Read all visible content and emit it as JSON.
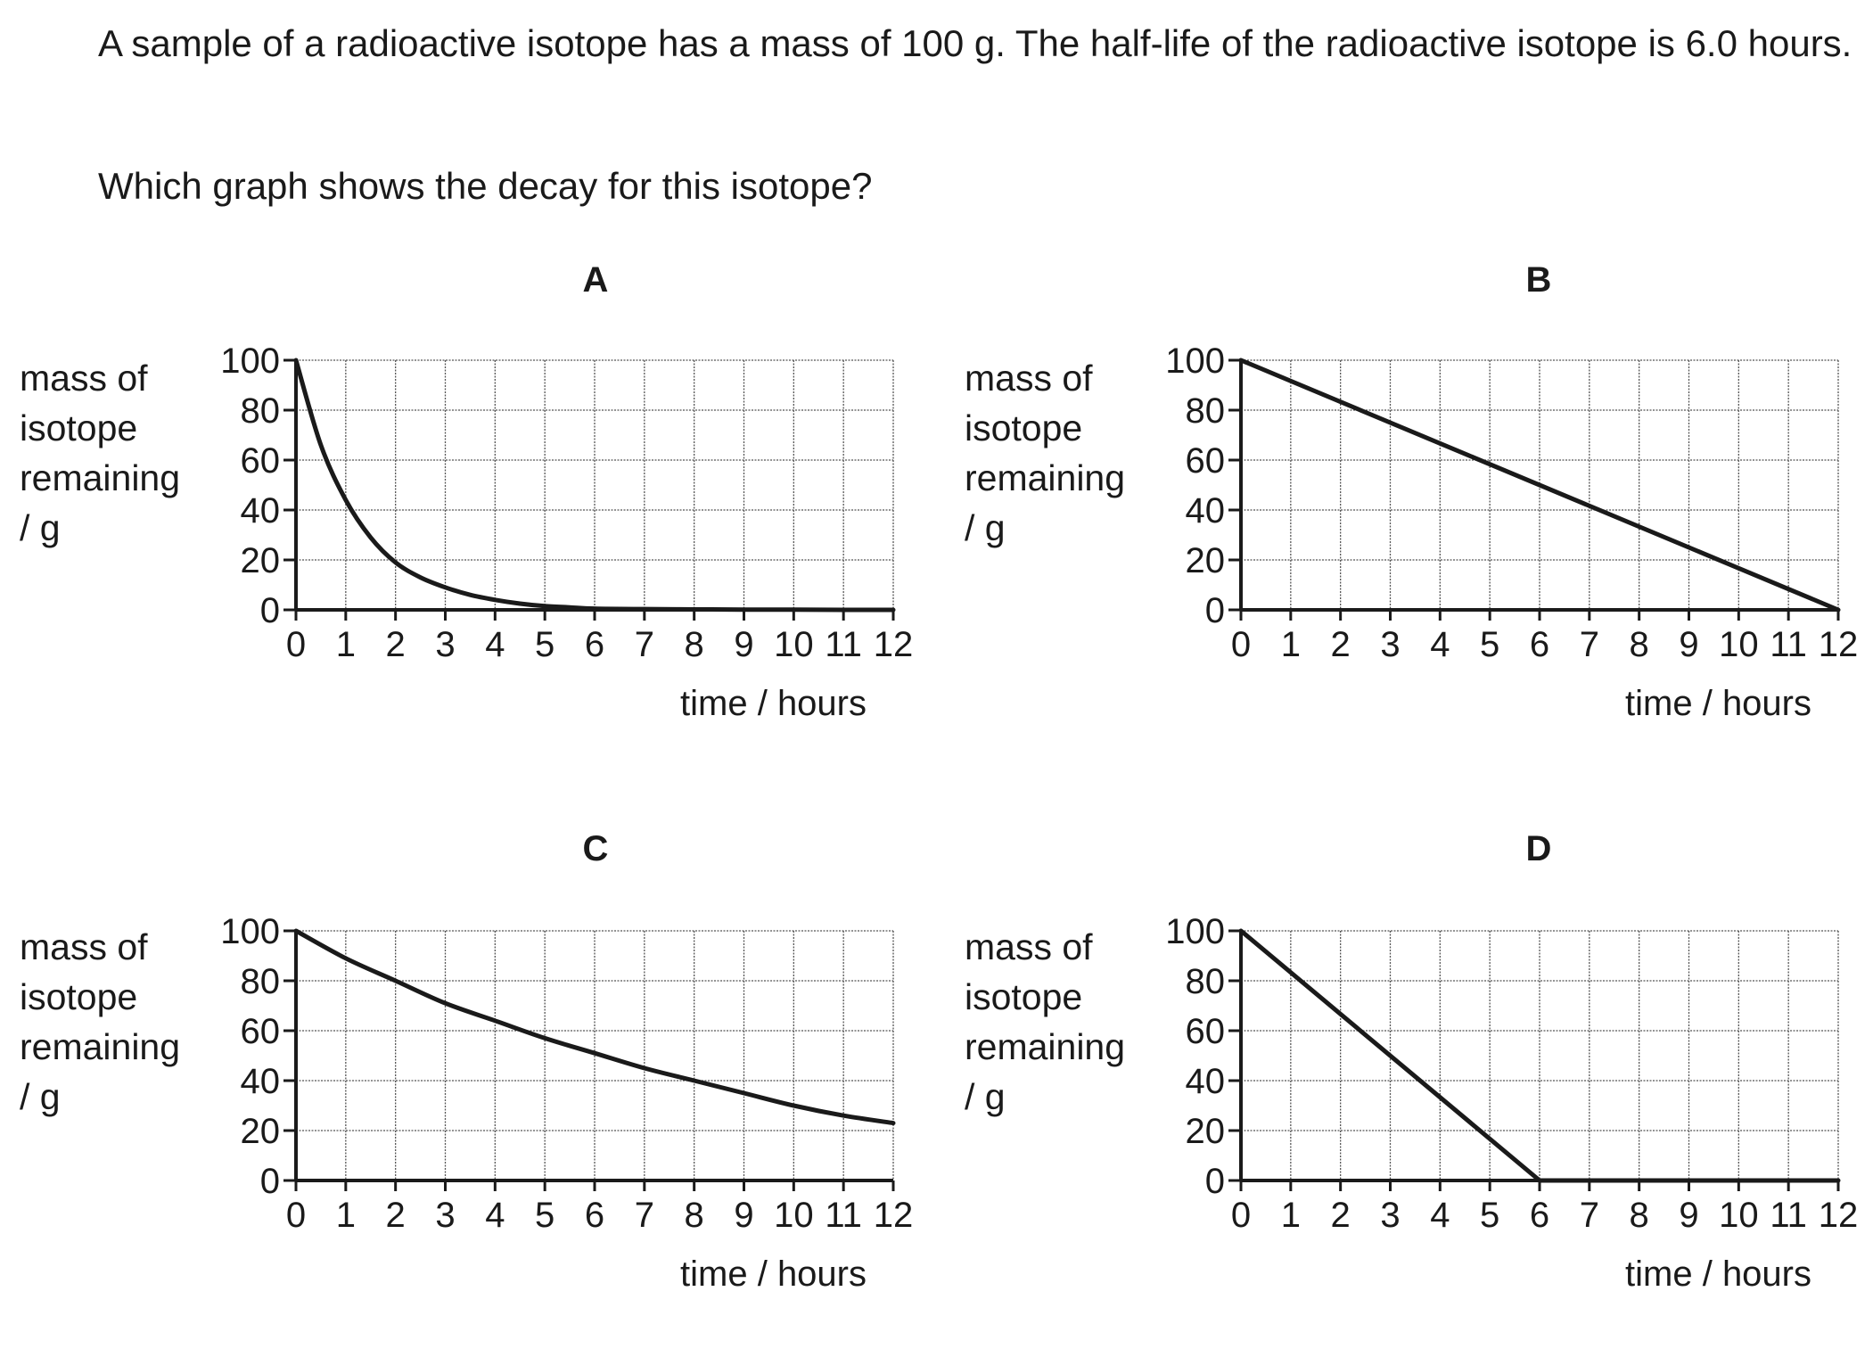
{
  "question": {
    "text": "A sample of a radioactive isotope has a mass of 100 g. The half-life of the radioactive isotope is 6.0 hours.",
    "prompt": "Which graph shows the decay for this isotope?"
  },
  "chart_data": [
    {
      "option": "A",
      "type": "line",
      "ylabel_lines": [
        "mass of",
        "isotope",
        "remaining",
        "/ g"
      ],
      "xlabel": "time / hours",
      "xlim": [
        0,
        12
      ],
      "ylim": [
        0,
        100
      ],
      "xticks": [
        "0",
        "1",
        "2",
        "3",
        "4",
        "5",
        "6",
        "7",
        "8",
        "9",
        "10",
        "11",
        "12"
      ],
      "yticks": [
        "0",
        "20",
        "40",
        "60",
        "80",
        "100"
      ],
      "grid": true,
      "series": [
        {
          "x": [
            0,
            0.5,
            1,
            1.5,
            2,
            2.5,
            3,
            3.5,
            4,
            4.5,
            5,
            5.5,
            6,
            7,
            8,
            9,
            10,
            11,
            12
          ],
          "y": [
            100,
            66,
            44,
            29,
            19,
            13,
            9,
            6,
            4,
            2.5,
            1.5,
            1,
            0.5,
            0.3,
            0.2,
            0.1,
            0.1,
            0,
            0
          ]
        }
      ]
    },
    {
      "option": "B",
      "type": "line",
      "ylabel_lines": [
        "mass of",
        "isotope",
        "remaining",
        "/ g"
      ],
      "xlabel": "time / hours",
      "xlim": [
        0,
        12
      ],
      "ylim": [
        0,
        100
      ],
      "xticks": [
        "0",
        "1",
        "2",
        "3",
        "4",
        "5",
        "6",
        "7",
        "8",
        "9",
        "10",
        "11",
        "12"
      ],
      "yticks": [
        "0",
        "20",
        "40",
        "60",
        "80",
        "100"
      ],
      "grid": true,
      "series": [
        {
          "x": [
            0,
            12
          ],
          "y": [
            100,
            0
          ]
        }
      ]
    },
    {
      "option": "C",
      "type": "line",
      "ylabel_lines": [
        "mass of",
        "isotope",
        "remaining",
        "/ g"
      ],
      "xlabel": "time / hours",
      "xlim": [
        0,
        12
      ],
      "ylim": [
        0,
        100
      ],
      "xticks": [
        "0",
        "1",
        "2",
        "3",
        "4",
        "5",
        "6",
        "7",
        "8",
        "9",
        "10",
        "11",
        "12"
      ],
      "yticks": [
        "0",
        "20",
        "40",
        "60",
        "80",
        "100"
      ],
      "grid": true,
      "series": [
        {
          "x": [
            0,
            1,
            2,
            3,
            4,
            5,
            6,
            7,
            8,
            9,
            10,
            11,
            12
          ],
          "y": [
            100,
            89,
            80,
            71,
            64,
            57,
            51,
            45,
            40,
            35,
            30,
            26,
            23
          ]
        }
      ]
    },
    {
      "option": "D",
      "type": "line",
      "ylabel_lines": [
        "mass of",
        "isotope",
        "remaining",
        "/ g"
      ],
      "xlabel": "time / hours",
      "xlim": [
        0,
        12
      ],
      "ylim": [
        0,
        100
      ],
      "xticks": [
        "0",
        "1",
        "2",
        "3",
        "4",
        "5",
        "6",
        "7",
        "8",
        "9",
        "10",
        "11",
        "12"
      ],
      "yticks": [
        "0",
        "20",
        "40",
        "60",
        "80",
        "100"
      ],
      "grid": true,
      "series": [
        {
          "x": [
            0,
            6,
            12
          ],
          "y": [
            100,
            0,
            0
          ]
        }
      ]
    }
  ],
  "colors": {
    "ink": "#1a1a1a",
    "grid": "#555555",
    "background": "#ffffff"
  }
}
